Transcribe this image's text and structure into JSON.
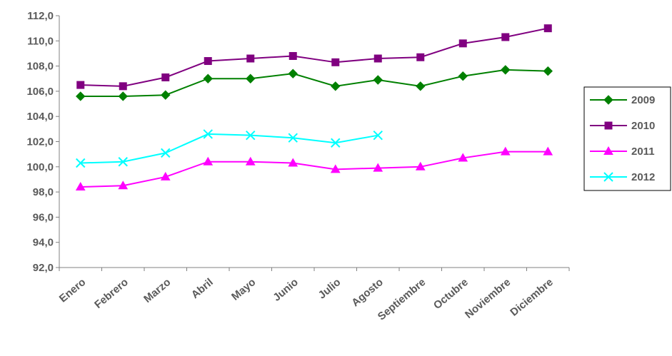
{
  "chart_data": {
    "type": "line",
    "title": "",
    "xlabel": "",
    "ylabel": "",
    "categories": [
      "Enero",
      "Febrero",
      "Marzo",
      "Abril",
      "Mayo",
      "Junio",
      "Julio",
      "Agosto",
      "Septiembre",
      "Octubre",
      "Noviembre",
      "Diciembre"
    ],
    "ylim": [
      92.0,
      112.0
    ],
    "ytick_values": [
      92,
      94,
      96,
      98,
      100,
      102,
      104,
      106,
      108,
      110,
      112
    ],
    "ytick_labels": [
      "92,0",
      "94,0",
      "96,0",
      "98,0",
      "100,0",
      "102,0",
      "104,0",
      "106,0",
      "108,0",
      "110,0",
      "112,0"
    ],
    "grid": false,
    "legend_position": "right",
    "series": [
      {
        "name": "2009",
        "color": "#008000",
        "marker": "diamond",
        "values": [
          105.6,
          105.6,
          105.7,
          107.0,
          107.0,
          107.4,
          106.4,
          106.9,
          106.4,
          107.2,
          107.7,
          107.6
        ]
      },
      {
        "name": "2010",
        "color": "#800080",
        "marker": "square",
        "values": [
          106.5,
          106.4,
          107.1,
          108.4,
          108.6,
          108.8,
          108.3,
          108.6,
          108.7,
          109.8,
          110.3,
          111.0
        ]
      },
      {
        "name": "2011",
        "color": "#ff00ff",
        "marker": "triangle",
        "values": [
          98.4,
          98.5,
          99.2,
          100.4,
          100.4,
          100.3,
          99.8,
          99.9,
          100.0,
          100.7,
          101.2,
          101.2
        ]
      },
      {
        "name": "2012",
        "color": "#00ffff",
        "marker": "x",
        "values": [
          100.3,
          100.4,
          101.1,
          102.6,
          102.5,
          102.3,
          101.9,
          102.5,
          null,
          null,
          null,
          null
        ]
      }
    ]
  }
}
